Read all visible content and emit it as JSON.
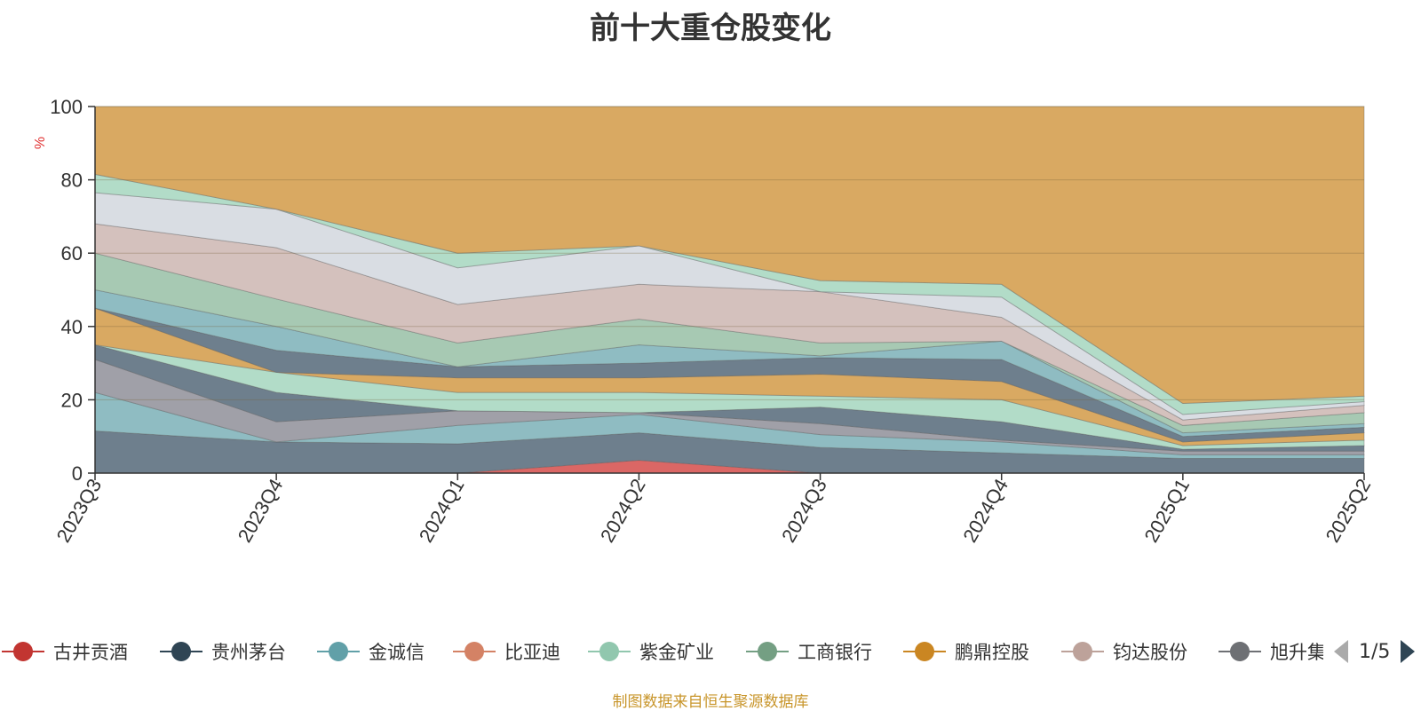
{
  "chart_data": {
    "type": "area",
    "title": "前十大重仓股变化",
    "ylabel": "%",
    "ylim": [
      0,
      100
    ],
    "yticks": [
      0,
      20,
      40,
      60,
      80,
      100
    ],
    "categories": [
      "2023Q3",
      "2023Q4",
      "2024Q1",
      "2024Q2",
      "2024Q3",
      "2024Q4",
      "2025Q1",
      "2025Q2"
    ],
    "stack_boundaries": [
      [
        0,
        0,
        0,
        0,
        0,
        0,
        0,
        0
      ],
      [
        0,
        0,
        0,
        3.5,
        0,
        0,
        0,
        0
      ],
      [
        11.5,
        8.5,
        8,
        11,
        7,
        5.5,
        4,
        4
      ],
      [
        22,
        8.5,
        13,
        16,
        10.5,
        8.5,
        5,
        5
      ],
      [
        31,
        14,
        17,
        16.5,
        13.5,
        9,
        6,
        6
      ],
      [
        35,
        22,
        17,
        16.5,
        18,
        14,
        6.5,
        7.5
      ],
      [
        35,
        27.5,
        22,
        22,
        21,
        20,
        7.5,
        9
      ],
      [
        45,
        27.5,
        26,
        26,
        27,
        25,
        8.5,
        11
      ],
      [
        45,
        33.5,
        29,
        30,
        31.5,
        31,
        10,
        12.5
      ],
      [
        50,
        40,
        29,
        35,
        32,
        36,
        11,
        13.5
      ],
      [
        60,
        47.5,
        35.5,
        42,
        35.5,
        36,
        13,
        16.5
      ],
      [
        68,
        61.5,
        46,
        51.5,
        49.5,
        42.5,
        14.5,
        18.5
      ],
      [
        76.5,
        72,
        56,
        62,
        49.5,
        48,
        16,
        19.5
      ],
      [
        81.5,
        72,
        60,
        62,
        52.5,
        51.5,
        19,
        21
      ],
      [
        100,
        100,
        100,
        100,
        100,
        100,
        100,
        100
      ]
    ],
    "band_colors": [
      "#d95f5d",
      "#6e7f8d",
      "#8fbcc2",
      "#a0a0a8",
      "#6e7f8d",
      "#b2dcc8",
      "#d9a962",
      "#6e7f8d",
      "#8fbcc2",
      "#a7c9b3",
      "#d4c1bd",
      "#d9dde3",
      "#b2dcc8",
      "#d9a962"
    ],
    "band_opacity": [
      0.95,
      1,
      1,
      1,
      1,
      1,
      1,
      1,
      1,
      1,
      1,
      1,
      1,
      1
    ],
    "legend": [
      {
        "name": "古井贡酒",
        "color": "#c23531"
      },
      {
        "name": "贵州茅台",
        "color": "#2f4554"
      },
      {
        "name": "金诚信",
        "color": "#61a0a8"
      },
      {
        "name": "比亚迪",
        "color": "#d48265"
      },
      {
        "name": "紫金矿业",
        "color": "#91c7ae"
      },
      {
        "name": "工商银行",
        "color": "#749f83"
      },
      {
        "name": "鹏鼎控股",
        "color": "#ca8622"
      },
      {
        "name": "钧达股份",
        "color": "#bda29a"
      },
      {
        "name": "旭升集团",
        "color": "#6e7074"
      }
    ],
    "legend_page": "1/5",
    "source_note": "制图数据来自恒生聚源数据库"
  }
}
